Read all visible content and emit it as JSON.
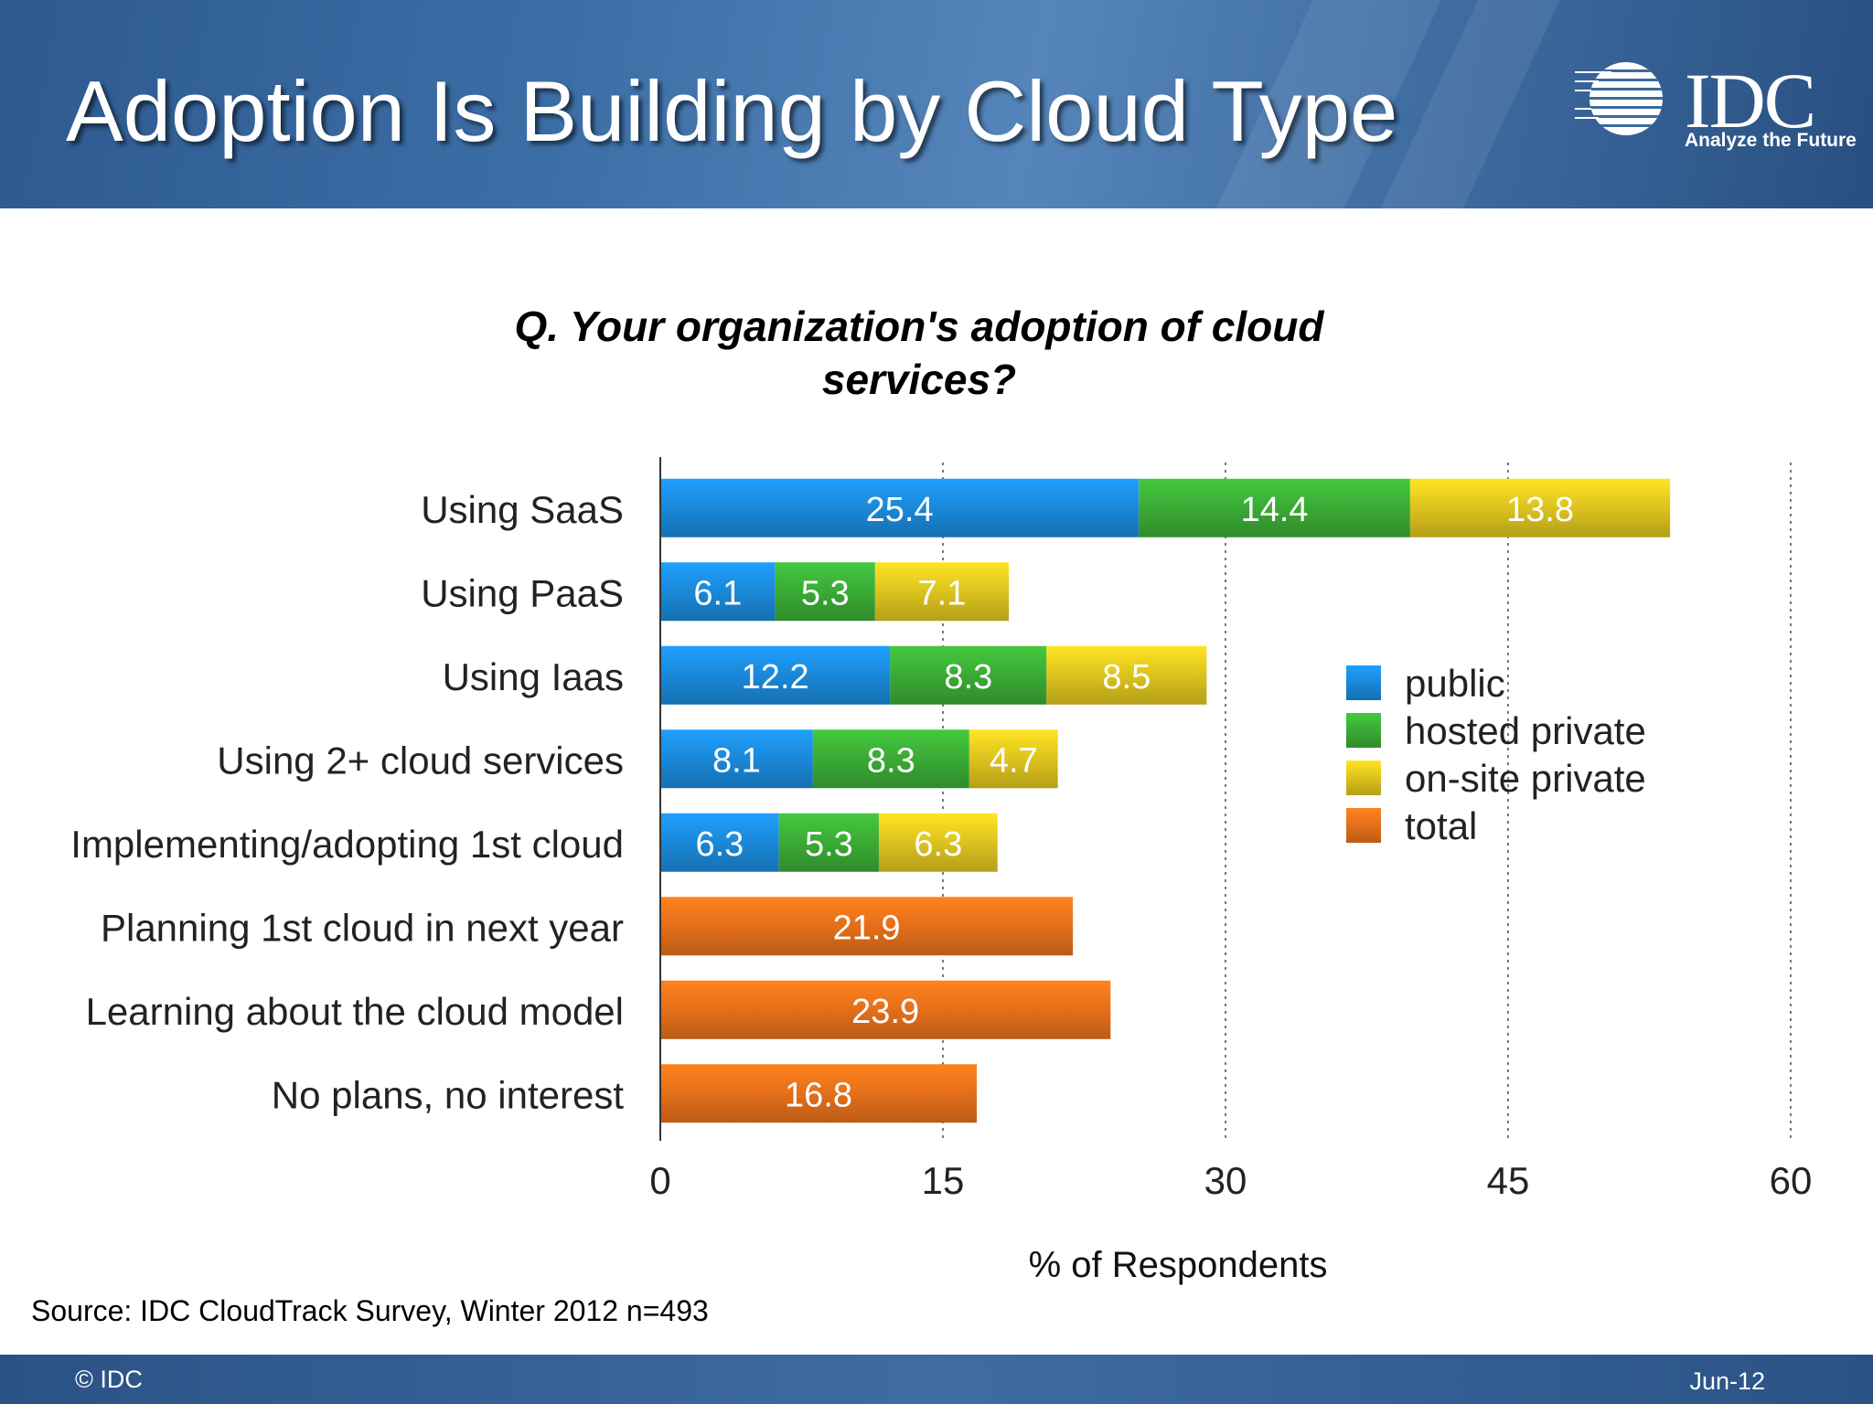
{
  "header": {
    "title": "Adoption Is Building by Cloud Type",
    "logo_text": "IDC",
    "logo_tagline": "Analyze the Future"
  },
  "question": "Q. Your organization's adoption of cloud services?",
  "chart_data": {
    "type": "bar",
    "orientation": "horizontal",
    "stacked": true,
    "title": "Q. Your organization's adoption of cloud services?",
    "xlabel": "% of Respondents",
    "ylabel": "",
    "xlim": [
      0,
      60
    ],
    "xticks": [
      0,
      15,
      30,
      45,
      60
    ],
    "grid": "vertical dotted",
    "legend_position": "right",
    "categories": [
      "Using SaaS",
      "Using PaaS",
      "Using Iaas",
      "Using 2+ cloud services",
      "Implementing/adopting 1st cloud",
      "Planning 1st cloud in next year",
      "Learning about the cloud model",
      "No plans, no interest"
    ],
    "series": [
      {
        "name": "public",
        "color": "#1a88d8",
        "values": [
          25.4,
          6.1,
          12.2,
          8.1,
          6.3,
          null,
          null,
          null
        ]
      },
      {
        "name": "hosted private",
        "color": "#3aaa35",
        "values": [
          14.4,
          5.3,
          8.3,
          8.3,
          5.3,
          null,
          null,
          null
        ]
      },
      {
        "name": "on-site private",
        "color": "#dcc21e",
        "values": [
          13.8,
          7.1,
          8.5,
          4.7,
          6.3,
          null,
          null,
          null
        ]
      },
      {
        "name": "total",
        "color": "#e46f1a",
        "values": [
          null,
          null,
          null,
          null,
          null,
          21.9,
          23.9,
          16.8
        ]
      }
    ]
  },
  "source": "Source: IDC CloudTrack Survey, Winter 2012  n=493",
  "footer": {
    "left": "© IDC",
    "right": "Jun-12"
  }
}
